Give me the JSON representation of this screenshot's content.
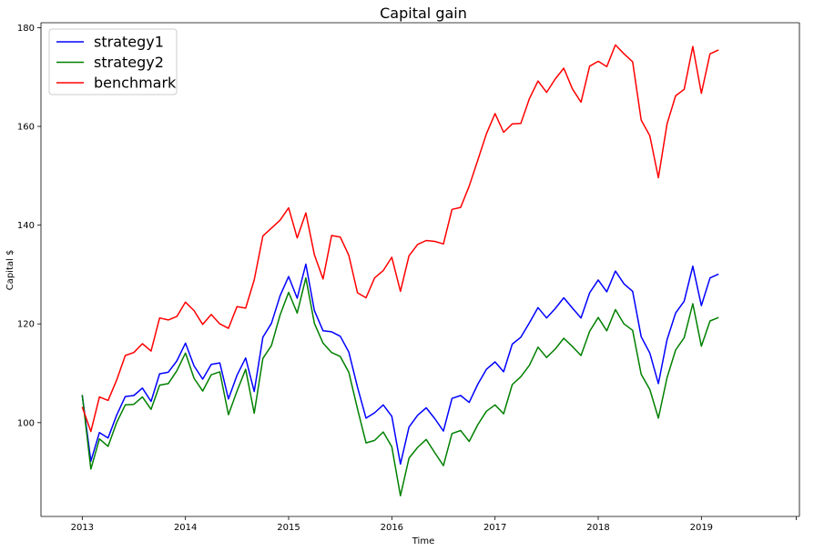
{
  "chart_data": {
    "type": "line",
    "title": "Capital gain",
    "xlabel": "Time",
    "ylabel": "Capital $",
    "xlim": [
      2012.6,
      2019.95
    ],
    "ylim": [
      81,
      181
    ],
    "x_ticks": [
      2013,
      2014,
      2015,
      2016,
      2017,
      2018,
      2019
    ],
    "x_tick_labels": [
      "2013",
      "2014",
      "2015",
      "2016",
      "2017",
      "2018",
      "2019"
    ],
    "extra_x_tick": 2019.92,
    "y_ticks": [
      100,
      120,
      140,
      160,
      180
    ],
    "y_tick_labels": [
      "100",
      "120",
      "140",
      "160",
      "180"
    ],
    "grid": false,
    "legend": "top-left",
    "x_start": 2013.0,
    "x_step": 0.0833333,
    "series": [
      {
        "name": "strategy1",
        "color": "#0000ff",
        "values": [
          105.6,
          92.2,
          98.0,
          96.9,
          101.5,
          105.3,
          105.5,
          107.0,
          104.3,
          109.9,
          110.2,
          112.5,
          116.1,
          111.5,
          108.8,
          111.8,
          112.1,
          104.8,
          109.6,
          113.1,
          106.3,
          117.3,
          120.1,
          125.7,
          129.6,
          125.2,
          132.1,
          122.7,
          118.6,
          118.4,
          117.5,
          114.3,
          107.2,
          100.9,
          102.0,
          103.6,
          101.3,
          91.6,
          99.1,
          101.5,
          103.0,
          100.8,
          98.3,
          104.9,
          105.5,
          104.1,
          107.8,
          110.8,
          112.3,
          110.3,
          115.9,
          117.3,
          120.2,
          123.3,
          121.2,
          123.1,
          125.3,
          123.2,
          121.2,
          126.3,
          128.9,
          126.5,
          130.7,
          128.1,
          126.6,
          117.4,
          114.1,
          107.9,
          116.8,
          122.2,
          124.6,
          131.7,
          123.7,
          129.3,
          130.1
        ]
      },
      {
        "name": "strategy2",
        "color": "#008000",
        "values": [
          105.6,
          90.6,
          96.7,
          95.2,
          100.0,
          103.6,
          103.7,
          105.2,
          102.7,
          107.6,
          107.9,
          110.5,
          114.1,
          109.0,
          106.4,
          109.7,
          110.3,
          101.6,
          106.4,
          110.8,
          101.9,
          113.0,
          115.6,
          121.8,
          126.4,
          122.2,
          129.3,
          120.1,
          116.1,
          114.2,
          113.4,
          110.2,
          102.8,
          95.9,
          96.4,
          98.1,
          95.1,
          85.2,
          92.8,
          95.0,
          96.6,
          93.9,
          91.3,
          97.8,
          98.4,
          96.2,
          99.6,
          102.3,
          103.6,
          101.8,
          107.7,
          109.3,
          111.6,
          115.3,
          113.2,
          114.9,
          117.1,
          115.4,
          113.6,
          118.5,
          121.3,
          118.6,
          122.9,
          120.0,
          118.7,
          109.8,
          106.7,
          100.9,
          109.1,
          114.7,
          117.2,
          124.1,
          115.5,
          120.6,
          121.3
        ]
      },
      {
        "name": "benchmark",
        "color": "#ff0000",
        "values": [
          103.2,
          98.2,
          105.2,
          104.5,
          108.6,
          113.6,
          114.2,
          116.0,
          114.5,
          121.2,
          120.8,
          121.5,
          124.4,
          122.7,
          119.9,
          121.9,
          120.0,
          119.1,
          123.5,
          123.2,
          128.9,
          137.8,
          139.4,
          141.0,
          143.5,
          137.4,
          142.5,
          134.0,
          129.1,
          137.9,
          137.6,
          133.9,
          126.3,
          125.3,
          129.3,
          130.8,
          133.5,
          126.6,
          133.8,
          136.1,
          136.9,
          136.7,
          136.2,
          143.2,
          143.6,
          147.9,
          153.2,
          158.5,
          162.6,
          158.8,
          160.5,
          160.6,
          165.6,
          169.2,
          166.9,
          169.6,
          171.8,
          167.6,
          164.9,
          172.2,
          173.2,
          172.1,
          176.5,
          174.7,
          173.1,
          161.3,
          158.1,
          149.6,
          160.5,
          166.2,
          167.5,
          176.2,
          166.7,
          174.7,
          175.5
        ]
      }
    ]
  }
}
